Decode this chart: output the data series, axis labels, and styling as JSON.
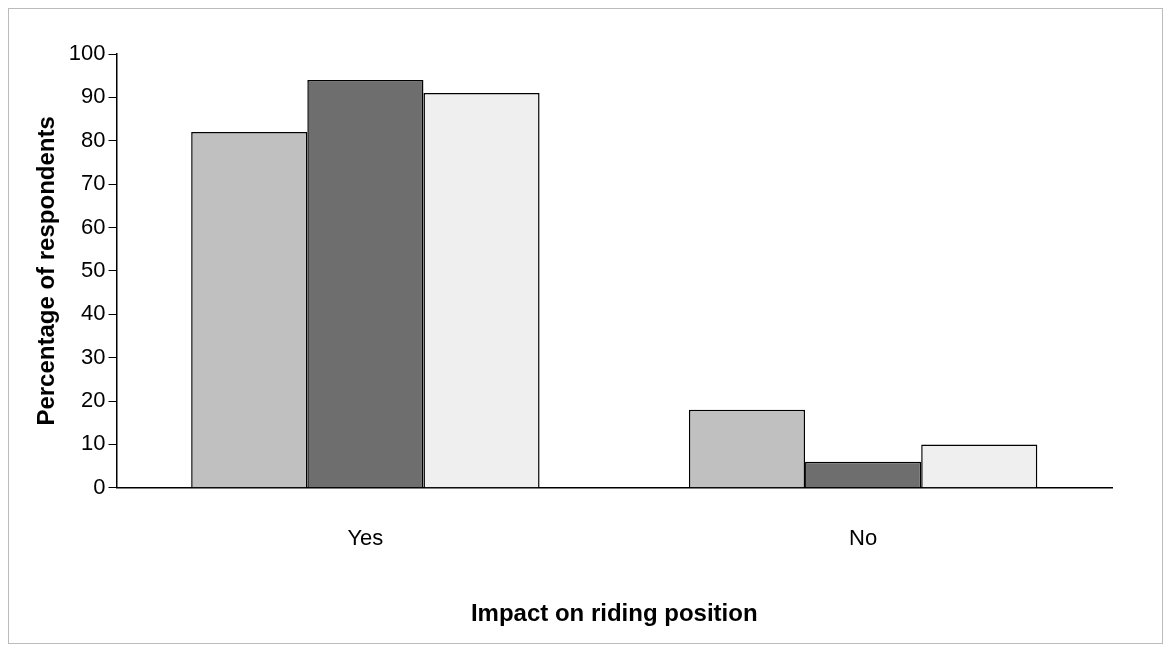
{
  "chart_data": {
    "type": "bar",
    "xlabel": "Impact on riding position",
    "ylabel": "Percentage of respondents",
    "categories": [
      "Yes",
      "No"
    ],
    "series": [
      {
        "color": "#c0c0c0",
        "values": [
          82,
          18
        ]
      },
      {
        "color": "#6e6e6e",
        "values": [
          94,
          6
        ]
      },
      {
        "color": "#efefef",
        "values": [
          91,
          10
        ]
      }
    ],
    "ylim": [
      0,
      100
    ],
    "yticks": [
      0,
      10,
      20,
      30,
      40,
      50,
      60,
      70,
      80,
      90,
      100
    ],
    "grid": false,
    "legend": false
  }
}
